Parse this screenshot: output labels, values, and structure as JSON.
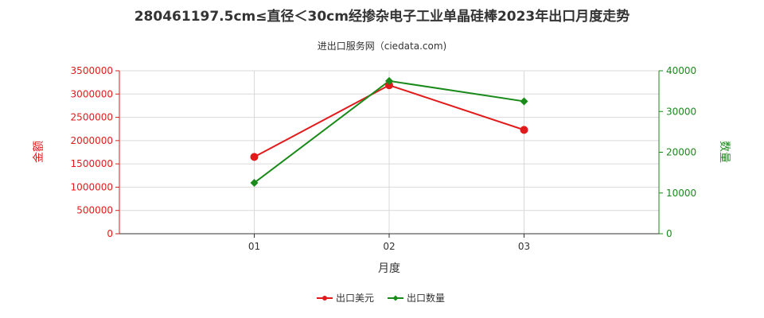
{
  "chart_data": {
    "type": "line",
    "title": "280461197.5cm≤直径＜30cm经掺杂电子工业单晶硅棒2023年出口月度走势",
    "subtitle": "进出口服务网（ciedata.com)",
    "categories": [
      "01",
      "02",
      "03"
    ],
    "xlabel": "月度",
    "ylabel_left": "金额",
    "ylabel_right": "数量",
    "ylim_left": [
      0,
      3500000
    ],
    "ylim_right": [
      0,
      40000
    ],
    "yticks_left": [
      "0",
      "500000",
      "1000000",
      "1500000",
      "2000000",
      "2500000",
      "3000000",
      "3500000"
    ],
    "yticks_right": [
      "0",
      "10000",
      "20000",
      "30000",
      "40000"
    ],
    "grid": true,
    "legend_position": "bottom",
    "series": [
      {
        "name": "出口美元",
        "axis": "left",
        "color": "#e31a1c",
        "marker": "circle",
        "values": [
          1650000,
          3190000,
          2230000
        ]
      },
      {
        "name": "出口数量",
        "axis": "right",
        "color": "#1a8a1a",
        "marker": "diamond",
        "values": [
          12500,
          37500,
          32500
        ]
      }
    ]
  }
}
